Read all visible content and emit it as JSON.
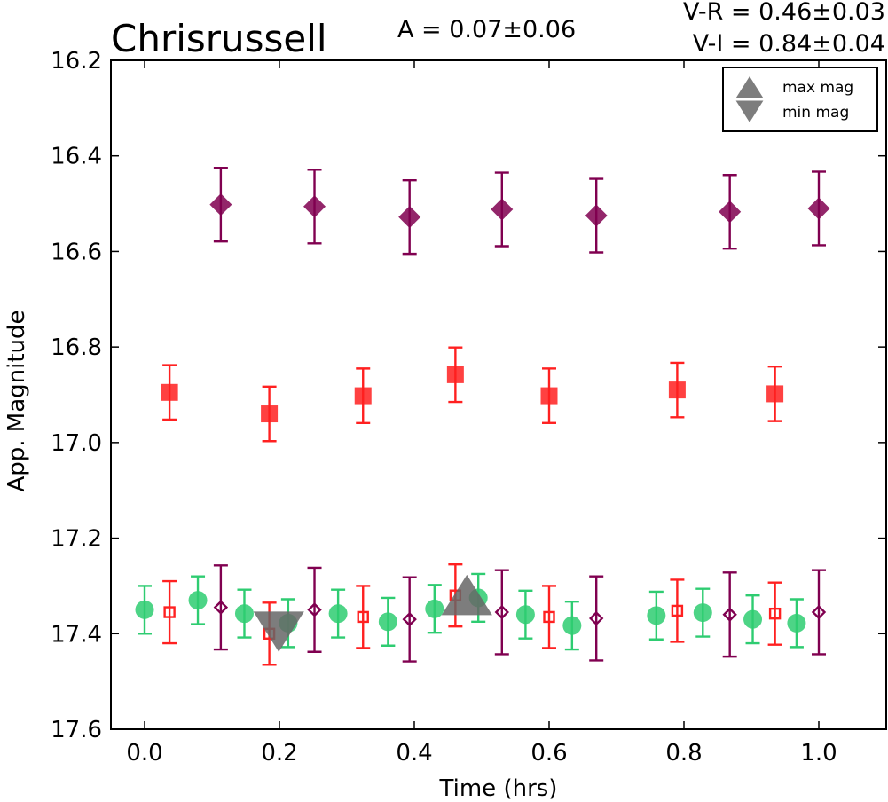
{
  "chart_data": {
    "type": "scatter",
    "title": "Chrisrussell",
    "amplitude_label": "A  = 0.07±0.06",
    "color_labels": [
      "V-R = 0.46±0.03",
      "V-I  = 0.84±0.04"
    ],
    "xlabel": "Time (hrs)",
    "ylabel": "App. Magnitude",
    "xlim": [
      -0.05,
      1.1
    ],
    "ylim": [
      17.6,
      16.2
    ],
    "y_inverted": true,
    "xticks": [
      0.0,
      0.2,
      0.4,
      0.6,
      0.8,
      1.0
    ],
    "xtick_labels": [
      "0.0",
      "0.2",
      "0.4",
      "0.6",
      "0.8",
      "1.0"
    ],
    "yticks": [
      16.2,
      16.4,
      16.6,
      16.8,
      17.0,
      17.2,
      17.4,
      17.6
    ],
    "ytick_labels": [
      "16.2",
      "16.4",
      "16.6",
      "16.8",
      "17.0",
      "17.2",
      "17.4",
      "17.6"
    ],
    "grid": false,
    "legend": {
      "placement": "top-right",
      "entries": [
        {
          "label": "max mag",
          "marker": "triangle-up"
        },
        {
          "label": "min mag",
          "marker": "triangle-down"
        }
      ]
    },
    "series": [
      {
        "marker": "circle",
        "filled": true,
        "color": "#2ecc71",
        "x": [
          0.0,
          0.079,
          0.148,
          0.213,
          0.287,
          0.361,
          0.43,
          0.495,
          0.565,
          0.634,
          0.759,
          0.828,
          0.902,
          0.967
        ],
        "y": [
          17.35,
          17.33,
          17.358,
          17.378,
          17.358,
          17.375,
          17.348,
          17.325,
          17.36,
          17.383,
          17.362,
          17.356,
          17.37,
          17.378
        ],
        "err": [
          0.05,
          0.05,
          0.05,
          0.05,
          0.05,
          0.05,
          0.05,
          0.05,
          0.05,
          0.05,
          0.05,
          0.05,
          0.05,
          0.05
        ]
      },
      {
        "marker": "square",
        "filled": false,
        "color": "#ff2020",
        "x": [
          0.037,
          0.185,
          0.324,
          0.461,
          0.6,
          0.79,
          0.935
        ],
        "y": [
          17.355,
          17.4,
          17.365,
          17.32,
          17.365,
          17.352,
          17.358
        ],
        "err": [
          0.065,
          0.065,
          0.065,
          0.065,
          0.065,
          0.065,
          0.065
        ]
      },
      {
        "marker": "diamond",
        "filled": false,
        "color": "#800050",
        "x": [
          0.113,
          0.252,
          0.393,
          0.53,
          0.67,
          0.868,
          1.0
        ],
        "y": [
          17.345,
          17.35,
          17.37,
          17.355,
          17.368,
          17.36,
          17.355
        ],
        "err": [
          0.088,
          0.088,
          0.088,
          0.088,
          0.088,
          0.088,
          0.088
        ]
      },
      {
        "marker": "square",
        "filled": true,
        "color": "#ff2020",
        "x": [
          0.037,
          0.185,
          0.324,
          0.461,
          0.6,
          0.79,
          0.935
        ],
        "y": [
          16.895,
          16.94,
          16.902,
          16.858,
          16.902,
          16.89,
          16.898
        ],
        "err": [
          0.057,
          0.057,
          0.057,
          0.057,
          0.057,
          0.057,
          0.057
        ]
      },
      {
        "marker": "diamond",
        "filled": true,
        "color": "#800050",
        "x": [
          0.113,
          0.252,
          0.393,
          0.53,
          0.67,
          0.868,
          1.0
        ],
        "y": [
          16.502,
          16.506,
          16.528,
          16.512,
          16.525,
          16.517,
          16.51
        ],
        "err": [
          0.077,
          0.077,
          0.077,
          0.077,
          0.077,
          0.077,
          0.077
        ]
      }
    ],
    "extrema": [
      {
        "label": "max mag",
        "marker": "triangle-up",
        "x": 0.478,
        "y": 17.325,
        "color": "#666666"
      },
      {
        "label": "min mag",
        "marker": "triangle-down",
        "x": 0.199,
        "y": 17.39,
        "color": "#666666"
      }
    ]
  }
}
